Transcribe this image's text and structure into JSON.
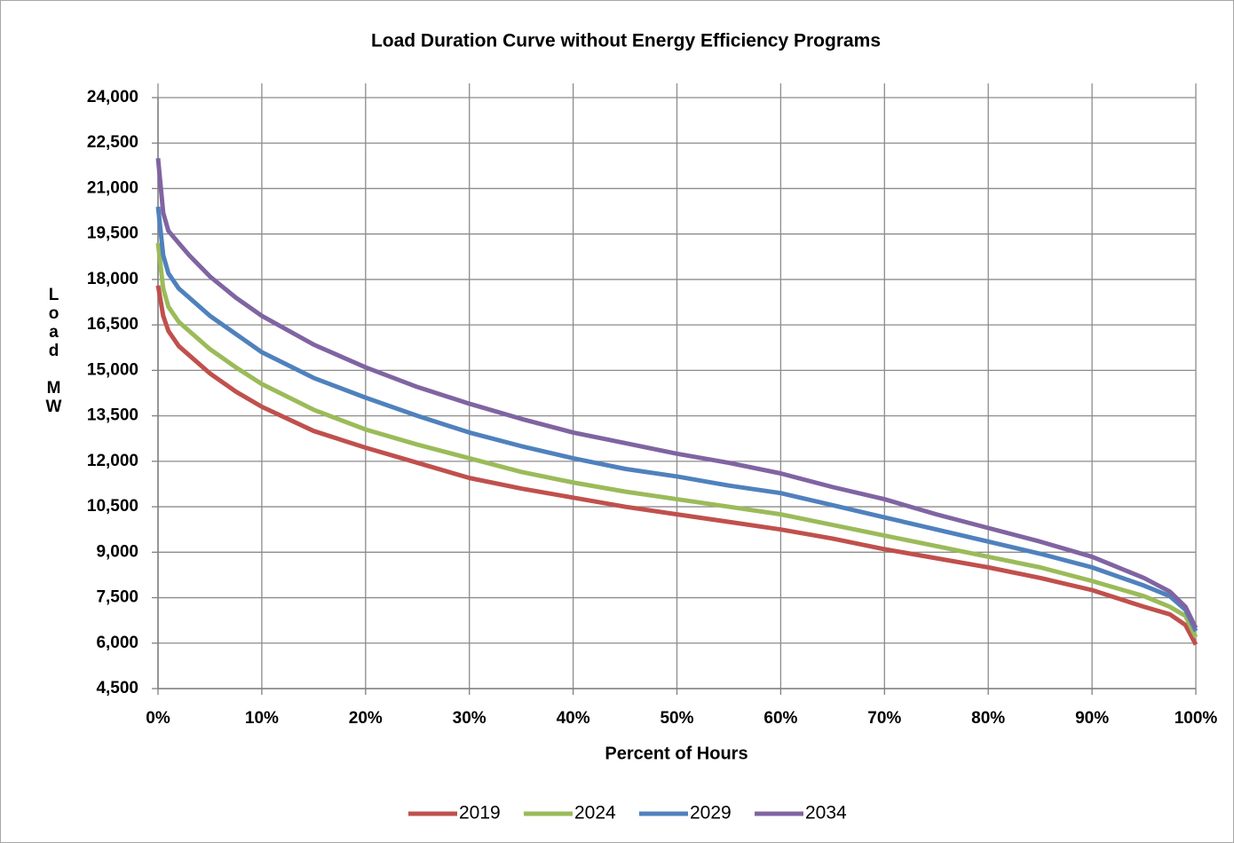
{
  "chart_data": {
    "type": "line",
    "title": "Load Duration Curve without Energy Efficiency Programs",
    "x_label": "Percent of Hours",
    "y_label": "Load MW",
    "x": [
      0,
      0.5,
      1,
      2,
      3,
      5,
      7.5,
      10,
      15,
      20,
      25,
      30,
      35,
      40,
      45,
      50,
      55,
      60,
      65,
      70,
      75,
      80,
      85,
      90,
      95,
      97.5,
      99,
      100
    ],
    "series": [
      {
        "name": "2019",
        "color": "#c0504d",
        "values": [
          17800,
          16800,
          16300,
          15800,
          15500,
          14900,
          14300,
          13800,
          13000,
          12450,
          11950,
          11450,
          11100,
          10800,
          10500,
          10250,
          10000,
          9750,
          9450,
          9100,
          8800,
          8500,
          8150,
          7750,
          7200,
          6950,
          6600,
          5950
        ]
      },
      {
        "name": "2024",
        "color": "#9bbb59",
        "values": [
          19200,
          17700,
          17100,
          16600,
          16300,
          15700,
          15100,
          14550,
          13700,
          13050,
          12550,
          12100,
          11650,
          11300,
          11000,
          10750,
          10500,
          10250,
          9900,
          9550,
          9200,
          8850,
          8500,
          8050,
          7550,
          7200,
          6900,
          6200
        ]
      },
      {
        "name": "2029",
        "color": "#4f81bd",
        "values": [
          20400,
          18800,
          18200,
          17700,
          17400,
          16800,
          16200,
          15600,
          14750,
          14100,
          13500,
          12950,
          12500,
          12100,
          11750,
          11500,
          11200,
          10950,
          10550,
          10150,
          9750,
          9350,
          8950,
          8500,
          7900,
          7550,
          7100,
          6400
        ]
      },
      {
        "name": "2034",
        "color": "#8064a2",
        "values": [
          22000,
          20200,
          19600,
          19200,
          18800,
          18100,
          17400,
          16800,
          15850,
          15100,
          14450,
          13900,
          13400,
          12950,
          12600,
          12250,
          11950,
          11600,
          11150,
          10750,
          10250,
          9800,
          9350,
          8850,
          8150,
          7700,
          7200,
          6500
        ]
      }
    ],
    "xlim": [
      0,
      100
    ],
    "xticks": [
      {
        "value": 0,
        "label": "0%"
      },
      {
        "value": 10,
        "label": "10%"
      },
      {
        "value": 20,
        "label": "20%"
      },
      {
        "value": 30,
        "label": "30%"
      },
      {
        "value": 40,
        "label": "40%"
      },
      {
        "value": 50,
        "label": "50%"
      },
      {
        "value": 60,
        "label": "60%"
      },
      {
        "value": 70,
        "label": "70%"
      },
      {
        "value": 80,
        "label": "80%"
      },
      {
        "value": 90,
        "label": "90%"
      },
      {
        "value": 100,
        "label": "100%"
      }
    ],
    "ylim": [
      4500,
      24000
    ],
    "yticks": [
      {
        "value": 4500,
        "label": "4,500"
      },
      {
        "value": 6000,
        "label": "6,000"
      },
      {
        "value": 7500,
        "label": "7,500"
      },
      {
        "value": 9000,
        "label": "9,000"
      },
      {
        "value": 10500,
        "label": "10,500"
      },
      {
        "value": 12000,
        "label": "12,000"
      },
      {
        "value": 13500,
        "label": "13,500"
      },
      {
        "value": 15000,
        "label": "15,000"
      },
      {
        "value": 16500,
        "label": "16,500"
      },
      {
        "value": 18000,
        "label": "18,000"
      },
      {
        "value": 19500,
        "label": "19,500"
      },
      {
        "value": 21000,
        "label": "21,000"
      },
      {
        "value": 22500,
        "label": "22,500"
      },
      {
        "value": 24000,
        "label": "24,000"
      }
    ],
    "grid": true,
    "legend": "bottom"
  }
}
